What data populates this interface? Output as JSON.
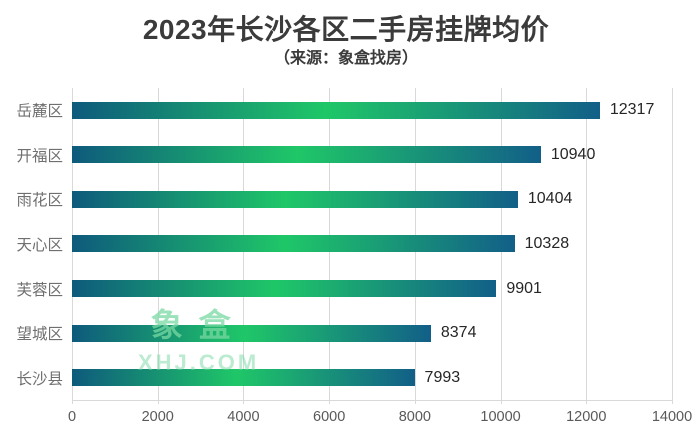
{
  "header": {
    "title": "2023年长沙各区二手房挂牌均价",
    "subtitle": "（来源：象盒找房）"
  },
  "watermark": {
    "logo_text": "象盒",
    "url_text": "XHJ.COM",
    "color": "#78d8a1"
  },
  "chart_data": {
    "type": "bar",
    "orientation": "horizontal",
    "title": "2023年长沙各区二手房挂牌均价",
    "subtitle": "（来源：象盒找房）",
    "categories": [
      "岳麓区",
      "开福区",
      "雨花区",
      "天心区",
      "芙蓉区",
      "望城区",
      "长沙县"
    ],
    "values": [
      12317,
      10940,
      10404,
      10328,
      9901,
      8374,
      7993
    ],
    "xlabel": "",
    "ylabel": "",
    "xlim": [
      0,
      14000
    ],
    "xticks": [
      0,
      2000,
      4000,
      6000,
      8000,
      10000,
      12000,
      14000
    ],
    "grid": true,
    "value_labels": true,
    "legend": false,
    "colors": {
      "bar_gradient_start": "#0e5a7c",
      "bar_gradient_mid": "#1fc768",
      "bar_gradient_end": "#125f88",
      "gridline": "#d9d9d9",
      "tick_label": "#595959",
      "category_label": "#6f6f6f",
      "value_label": "#262626",
      "title": "#3b3b3b"
    }
  }
}
